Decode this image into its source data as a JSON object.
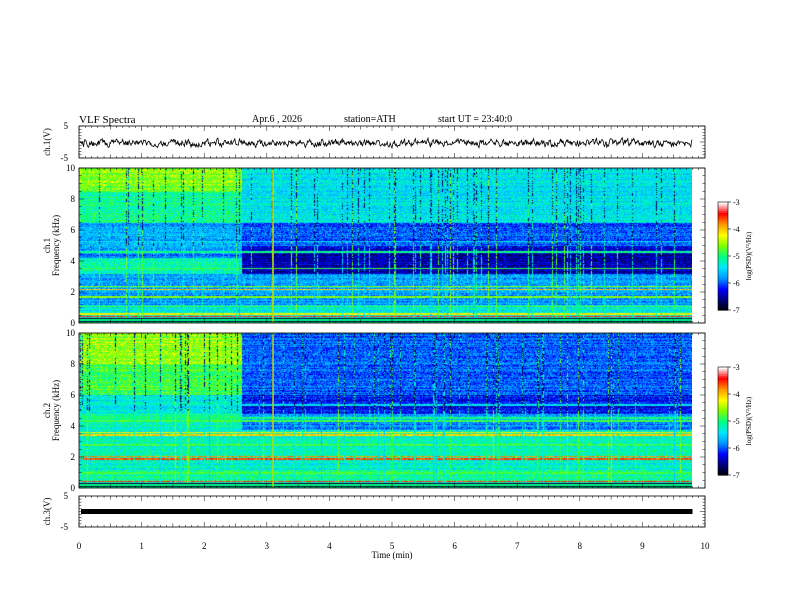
{
  "header": {
    "title": "VLF Spectra",
    "date": "Apr.6 , 2026",
    "station": "station=ATH",
    "start": "start UT = 23:40:0"
  },
  "chart_data": {
    "type": "heatmap",
    "x": {
      "label": "Time (min)",
      "range": [
        0,
        10
      ],
      "ticks": [
        "0",
        "1",
        "2",
        "3",
        "4",
        "5",
        "6",
        "7",
        "8",
        "9",
        "10"
      ]
    },
    "panels": [
      {
        "id": "ch1-waveform",
        "type": "line",
        "ylabel": "ch.1(V)",
        "yticks": [
          "5",
          "-5"
        ],
        "ylim": [
          -5,
          5
        ]
      },
      {
        "id": "ch1-spectrogram",
        "type": "heatmap",
        "ylabel_top": "ch.1",
        "ylabel": "Frequency (kHz)",
        "yticks": [
          "0",
          "2",
          "4",
          "6",
          "8",
          "10"
        ],
        "ylim": [
          0,
          10
        ],
        "colorbar": {
          "label": "log(PSD)(V²/Hz)",
          "ticks": [
            "-3",
            "-4",
            "-5",
            "-6",
            "-7"
          ],
          "range": [
            -7,
            -3
          ]
        }
      },
      {
        "id": "ch2-spectrogram",
        "type": "heatmap",
        "ylabel_top": "ch.2",
        "ylabel": "Frequency (kHz)",
        "yticks": [
          "0",
          "2",
          "4",
          "6",
          "8",
          "10"
        ],
        "ylim": [
          0,
          10
        ],
        "colorbar": {
          "label": "log(PSD)(V²/Hz)",
          "ticks": [
            "-3",
            "-4",
            "-5",
            "-6",
            "-7"
          ],
          "range": [
            -7,
            -3
          ]
        }
      },
      {
        "id": "ch3-waveform",
        "type": "line",
        "ylabel": "ch.3(V)",
        "yticks": [
          "5",
          "-5"
        ],
        "ylim": [
          -5,
          5
        ]
      }
    ],
    "colormap": [
      "#000000",
      "#00007a",
      "#0000ff",
      "#0096ff",
      "#00e6ff",
      "#00ff80",
      "#80ff00",
      "#ffff00",
      "#ff9600",
      "#ff0000",
      "#ffffff"
    ],
    "data_end_min": 9.8,
    "transition_min": 2.6,
    "vertical_line_min": 3.1
  }
}
